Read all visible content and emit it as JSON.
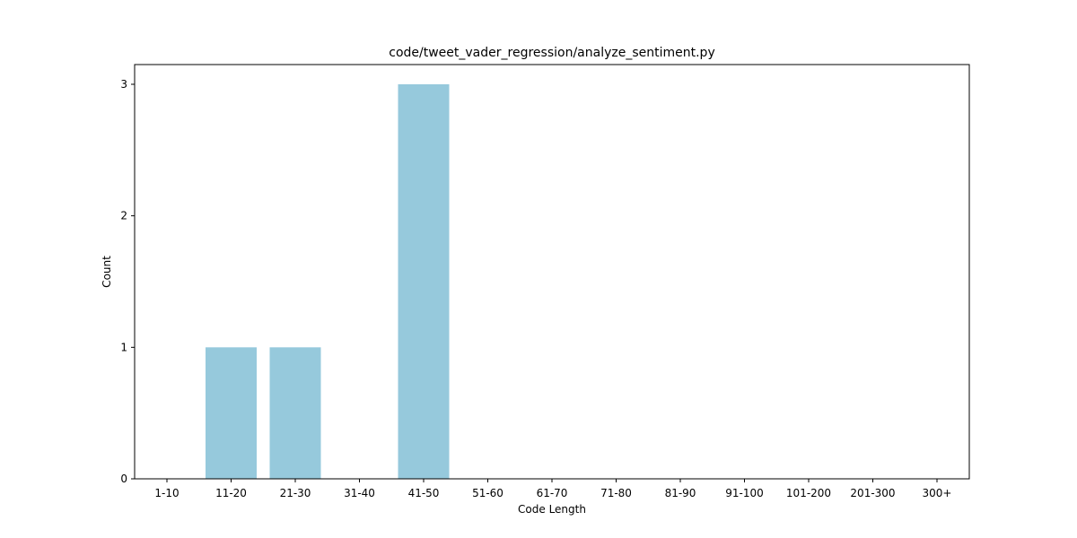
{
  "chart_data": {
    "type": "bar",
    "title": "code/tweet_vader_regression/analyze_sentiment.py",
    "xlabel": "Code Length",
    "ylabel": "Count",
    "categories": [
      "1-10",
      "11-20",
      "21-30",
      "31-40",
      "41-50",
      "51-60",
      "61-70",
      "71-80",
      "81-90",
      "91-100",
      "101-200",
      "201-300",
      "300+"
    ],
    "values": [
      0,
      1,
      1,
      0,
      3,
      0,
      0,
      0,
      0,
      0,
      0,
      0,
      0
    ],
    "ylim": [
      0,
      3.15
    ],
    "yticks": [
      0,
      1,
      2,
      3
    ],
    "bar_color": "#96c9dc",
    "grid": false,
    "legend": "none"
  }
}
